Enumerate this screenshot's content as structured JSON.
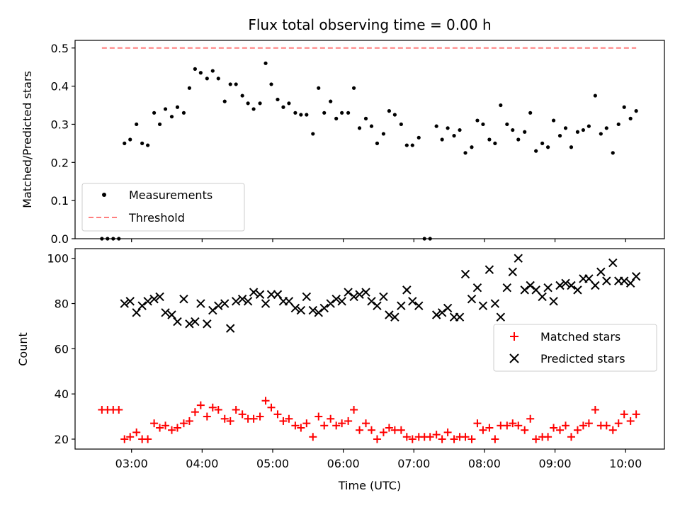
{
  "figure": {
    "title": "Flux total observing time = 0.00 h",
    "xlabel": "Time (UTC)",
    "x_tick_labels": [
      "03:00",
      "04:00",
      "05:00",
      "06:00",
      "07:00",
      "08:00",
      "09:00",
      "10:00"
    ]
  },
  "colors": {
    "measurements": "#000000",
    "threshold": "#ff7f7f",
    "matched": "#ff0000",
    "predicted": "#000000"
  },
  "chart_data": [
    {
      "type": "scatter",
      "xlabel": "",
      "ylabel": "Matched/Predicted stars",
      "x_unit": "hours UTC",
      "xlim": [
        2.2,
        10.55
      ],
      "ylim": [
        0,
        0.52
      ],
      "y_ticks": [
        0.0,
        0.1,
        0.2,
        0.3,
        0.4,
        0.5
      ],
      "y_tick_labels": [
        "0.0",
        "0.1",
        "0.2",
        "0.3",
        "0.4",
        "0.5"
      ],
      "legend_position": "lower-left",
      "series": [
        {
          "name": "Measurements",
          "marker": "dot",
          "points": [
            [
              2.58,
              0
            ],
            [
              2.66,
              0
            ],
            [
              2.74,
              0
            ],
            [
              2.82,
              0
            ],
            [
              2.9,
              0.25
            ],
            [
              2.98,
              0.26
            ],
            [
              3.07,
              0.3
            ],
            [
              3.15,
              0.25
            ],
            [
              3.23,
              0.245
            ],
            [
              3.32,
              0.33
            ],
            [
              3.4,
              0.3
            ],
            [
              3.48,
              0.34
            ],
            [
              3.57,
              0.32
            ],
            [
              3.65,
              0.345
            ],
            [
              3.74,
              0.33
            ],
            [
              3.82,
              0.395
            ],
            [
              3.9,
              0.445
            ],
            [
              3.98,
              0.435
            ],
            [
              4.07,
              0.42
            ],
            [
              4.15,
              0.44
            ],
            [
              4.23,
              0.42
            ],
            [
              4.32,
              0.36
            ],
            [
              4.4,
              0.405
            ],
            [
              4.48,
              0.405
            ],
            [
              4.57,
              0.375
            ],
            [
              4.65,
              0.355
            ],
            [
              4.73,
              0.34
            ],
            [
              4.82,
              0.355
            ],
            [
              4.9,
              0.46
            ],
            [
              4.98,
              0.405
            ],
            [
              5.07,
              0.365
            ],
            [
              5.15,
              0.345
            ],
            [
              5.23,
              0.355
            ],
            [
              5.32,
              0.33
            ],
            [
              5.4,
              0.325
            ],
            [
              5.48,
              0.325
            ],
            [
              5.57,
              0.275
            ],
            [
              5.65,
              0.395
            ],
            [
              5.73,
              0.33
            ],
            [
              5.82,
              0.36
            ],
            [
              5.9,
              0.315
            ],
            [
              5.98,
              0.33
            ],
            [
              6.07,
              0.33
            ],
            [
              6.15,
              0.395
            ],
            [
              6.23,
              0.29
            ],
            [
              6.32,
              0.315
            ],
            [
              6.4,
              0.295
            ],
            [
              6.48,
              0.25
            ],
            [
              6.57,
              0.275
            ],
            [
              6.65,
              0.335
            ],
            [
              6.73,
              0.325
            ],
            [
              6.82,
              0.3
            ],
            [
              6.9,
              0.245
            ],
            [
              6.98,
              0.245
            ],
            [
              7.07,
              0.265
            ],
            [
              7.15,
              0
            ],
            [
              7.23,
              0
            ],
            [
              7.32,
              0.295
            ],
            [
              7.4,
              0.26
            ],
            [
              7.48,
              0.29
            ],
            [
              7.57,
              0.27
            ],
            [
              7.65,
              0.285
            ],
            [
              7.73,
              0.225
            ],
            [
              7.82,
              0.24
            ],
            [
              7.9,
              0.31
            ],
            [
              7.98,
              0.3
            ],
            [
              8.07,
              0.26
            ],
            [
              8.15,
              0.25
            ],
            [
              8.23,
              0.35
            ],
            [
              8.32,
              0.3
            ],
            [
              8.4,
              0.285
            ],
            [
              8.48,
              0.26
            ],
            [
              8.57,
              0.28
            ],
            [
              8.65,
              0.33
            ],
            [
              8.73,
              0.23
            ],
            [
              8.82,
              0.25
            ],
            [
              8.9,
              0.24
            ],
            [
              8.98,
              0.31
            ],
            [
              9.07,
              0.27
            ],
            [
              9.15,
              0.29
            ],
            [
              9.23,
              0.24
            ],
            [
              9.32,
              0.28
            ],
            [
              9.4,
              0.285
            ],
            [
              9.48,
              0.295
            ],
            [
              9.57,
              0.375
            ],
            [
              9.65,
              0.275
            ],
            [
              9.73,
              0.29
            ],
            [
              9.82,
              0.225
            ],
            [
              9.9,
              0.3
            ],
            [
              9.98,
              0.345
            ],
            [
              10.07,
              0.315
            ],
            [
              10.15,
              0.335
            ]
          ]
        },
        {
          "name": "Threshold",
          "marker": "dashed-line",
          "points": [
            [
              2.58,
              0.5
            ],
            [
              10.15,
              0.5
            ]
          ]
        }
      ]
    },
    {
      "type": "scatter",
      "xlabel": "Time (UTC)",
      "ylabel": "Count",
      "x_unit": "hours UTC",
      "xlim": [
        2.2,
        10.55
      ],
      "ylim": [
        15.6,
        104.3
      ],
      "y_ticks": [
        20,
        40,
        60,
        80,
        100
      ],
      "y_tick_labels": [
        "20",
        "40",
        "60",
        "80",
        "100"
      ],
      "legend_position": "right",
      "series": [
        {
          "name": "Matched stars",
          "marker": "plus",
          "points": [
            [
              2.58,
              33
            ],
            [
              2.66,
              33
            ],
            [
              2.74,
              33
            ],
            [
              2.82,
              33
            ],
            [
              2.9,
              20
            ],
            [
              2.98,
              21
            ],
            [
              3.07,
              23
            ],
            [
              3.15,
              20
            ],
            [
              3.23,
              20
            ],
            [
              3.32,
              27
            ],
            [
              3.4,
              25
            ],
            [
              3.48,
              26
            ],
            [
              3.57,
              24
            ],
            [
              3.65,
              25
            ],
            [
              3.74,
              27
            ],
            [
              3.82,
              28
            ],
            [
              3.9,
              32
            ],
            [
              3.98,
              35
            ],
            [
              4.07,
              30
            ],
            [
              4.15,
              34
            ],
            [
              4.23,
              33
            ],
            [
              4.32,
              29
            ],
            [
              4.4,
              28
            ],
            [
              4.48,
              33
            ],
            [
              4.57,
              31
            ],
            [
              4.65,
              29
            ],
            [
              4.73,
              29
            ],
            [
              4.82,
              30
            ],
            [
              4.9,
              37
            ],
            [
              4.98,
              34
            ],
            [
              5.07,
              31
            ],
            [
              5.15,
              28
            ],
            [
              5.23,
              29
            ],
            [
              5.32,
              26
            ],
            [
              5.4,
              25
            ],
            [
              5.48,
              27
            ],
            [
              5.57,
              21
            ],
            [
              5.65,
              30
            ],
            [
              5.73,
              26
            ],
            [
              5.82,
              29
            ],
            [
              5.9,
              26
            ],
            [
              5.98,
              27
            ],
            [
              6.07,
              28
            ],
            [
              6.15,
              33
            ],
            [
              6.23,
              24
            ],
            [
              6.32,
              27
            ],
            [
              6.4,
              24
            ],
            [
              6.48,
              20
            ],
            [
              6.57,
              23
            ],
            [
              6.65,
              25
            ],
            [
              6.73,
              24
            ],
            [
              6.82,
              24
            ],
            [
              6.9,
              21
            ],
            [
              6.98,
              20
            ],
            [
              7.07,
              21
            ],
            [
              7.15,
              21
            ],
            [
              7.23,
              21
            ],
            [
              7.32,
              22
            ],
            [
              7.4,
              20
            ],
            [
              7.48,
              23
            ],
            [
              7.57,
              20
            ],
            [
              7.65,
              21
            ],
            [
              7.73,
              21
            ],
            [
              7.82,
              20
            ],
            [
              7.9,
              27
            ],
            [
              7.98,
              24
            ],
            [
              8.07,
              25
            ],
            [
              8.15,
              20
            ],
            [
              8.23,
              26
            ],
            [
              8.32,
              26
            ],
            [
              8.4,
              27
            ],
            [
              8.48,
              26
            ],
            [
              8.57,
              24
            ],
            [
              8.65,
              29
            ],
            [
              8.73,
              20
            ],
            [
              8.82,
              21
            ],
            [
              8.9,
              21
            ],
            [
              8.98,
              25
            ],
            [
              9.07,
              24
            ],
            [
              9.15,
              26
            ],
            [
              9.23,
              21
            ],
            [
              9.32,
              24
            ],
            [
              9.4,
              26
            ],
            [
              9.48,
              27
            ],
            [
              9.57,
              33
            ],
            [
              9.65,
              26
            ],
            [
              9.73,
              26
            ],
            [
              9.82,
              24
            ],
            [
              9.9,
              27
            ],
            [
              9.98,
              31
            ],
            [
              10.07,
              28
            ],
            [
              10.15,
              31
            ]
          ]
        },
        {
          "name": "Predicted stars",
          "marker": "x",
          "points": [
            [
              2.9,
              80
            ],
            [
              2.98,
              81
            ],
            [
              3.07,
              76
            ],
            [
              3.15,
              79
            ],
            [
              3.23,
              81
            ],
            [
              3.32,
              82
            ],
            [
              3.4,
              83
            ],
            [
              3.48,
              76
            ],
            [
              3.57,
              75
            ],
            [
              3.65,
              72
            ],
            [
              3.74,
              82
            ],
            [
              3.82,
              71
            ],
            [
              3.9,
              72
            ],
            [
              3.98,
              80
            ],
            [
              4.07,
              71
            ],
            [
              4.15,
              77
            ],
            [
              4.23,
              79
            ],
            [
              4.32,
              80
            ],
            [
              4.4,
              69
            ],
            [
              4.48,
              81
            ],
            [
              4.57,
              82
            ],
            [
              4.65,
              81
            ],
            [
              4.73,
              85
            ],
            [
              4.82,
              84
            ],
            [
              4.9,
              80
            ],
            [
              4.98,
              84
            ],
            [
              5.07,
              84
            ],
            [
              5.15,
              81
            ],
            [
              5.23,
              81
            ],
            [
              5.32,
              78
            ],
            [
              5.4,
              77
            ],
            [
              5.48,
              83
            ],
            [
              5.57,
              77
            ],
            [
              5.65,
              76
            ],
            [
              5.73,
              78
            ],
            [
              5.82,
              80
            ],
            [
              5.9,
              82
            ],
            [
              5.98,
              81
            ],
            [
              6.07,
              85
            ],
            [
              6.15,
              83
            ],
            [
              6.23,
              84
            ],
            [
              6.32,
              85
            ],
            [
              6.4,
              81
            ],
            [
              6.48,
              79
            ],
            [
              6.57,
              83
            ],
            [
              6.65,
              75
            ],
            [
              6.73,
              74
            ],
            [
              6.82,
              79
            ],
            [
              6.9,
              86
            ],
            [
              6.98,
              81
            ],
            [
              7.07,
              79
            ],
            [
              7.32,
              75
            ],
            [
              7.4,
              76
            ],
            [
              7.48,
              78
            ],
            [
              7.57,
              74
            ],
            [
              7.65,
              74
            ],
            [
              7.73,
              93
            ],
            [
              7.82,
              82
            ],
            [
              7.9,
              87
            ],
            [
              7.98,
              79
            ],
            [
              8.07,
              95
            ],
            [
              8.15,
              80
            ],
            [
              8.23,
              74
            ],
            [
              8.32,
              87
            ],
            [
              8.4,
              94
            ],
            [
              8.48,
              100
            ],
            [
              8.57,
              86
            ],
            [
              8.65,
              88
            ],
            [
              8.73,
              86
            ],
            [
              8.82,
              83
            ],
            [
              8.9,
              87
            ],
            [
              8.98,
              81
            ],
            [
              9.07,
              88
            ],
            [
              9.15,
              89
            ],
            [
              9.23,
              88
            ],
            [
              9.32,
              86
            ],
            [
              9.4,
              91
            ],
            [
              9.48,
              91
            ],
            [
              9.57,
              88
            ],
            [
              9.65,
              94
            ],
            [
              9.73,
              90
            ],
            [
              9.82,
              98
            ],
            [
              9.9,
              90
            ],
            [
              9.98,
              90
            ],
            [
              10.07,
              89
            ],
            [
              10.15,
              92
            ]
          ]
        }
      ]
    }
  ]
}
